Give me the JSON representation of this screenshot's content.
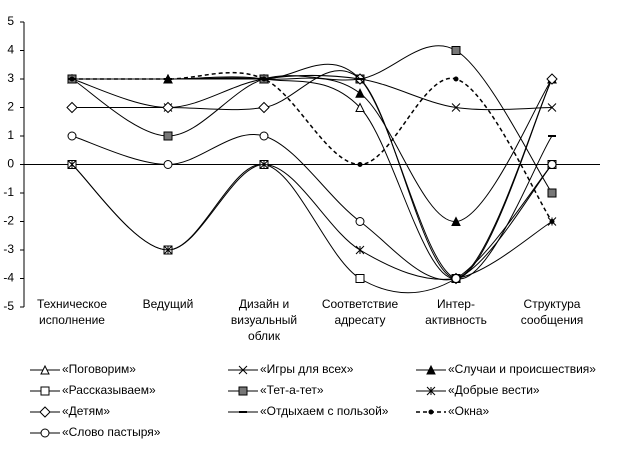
{
  "chart_data": {
    "type": "line",
    "categories": [
      "Техническое\nисполнение",
      "Ведущий",
      "Дизайн и\nвизуальный\nоблик",
      "Соответствие\nадресату",
      "Интер-\nактивность",
      "Структура\nсообщения"
    ],
    "ylim": [
      -5,
      5
    ],
    "yticks": [
      -5,
      -4,
      -3,
      -2,
      -1,
      0,
      1,
      2,
      3,
      4,
      5
    ],
    "series": [
      {
        "name": "«Поговорим»",
        "color": "#000000",
        "marker": "triangle-open",
        "dash": false,
        "values": [
          3,
          3,
          3,
          2,
          -4,
          3
        ]
      },
      {
        "name": "«Игры для всех»",
        "color": "#000000",
        "marker": "x",
        "dash": false,
        "values": [
          3,
          2,
          3,
          3,
          2,
          2
        ]
      },
      {
        "name": "«Случаи и происшествия»",
        "color": "#000000",
        "marker": "triangle-filled",
        "dash": false,
        "values": [
          3,
          3,
          3,
          2.5,
          -2,
          3
        ]
      },
      {
        "name": "«Рассказываем»",
        "color": "#000000",
        "marker": "square-open",
        "dash": false,
        "values": [
          0,
          -3,
          0,
          -4,
          -4,
          0
        ]
      },
      {
        "name": "«Тет-а-тет»",
        "color": "#000000",
        "marker": "square-filled",
        "dash": false,
        "values": [
          3,
          1,
          3,
          3,
          4,
          -1
        ]
      },
      {
        "name": "«Добрые вести»",
        "color": "#000000",
        "marker": "star",
        "dash": false,
        "values": [
          0,
          -3,
          0,
          -3,
          -4,
          -2
        ]
      },
      {
        "name": "«Детям»",
        "color": "#000000",
        "marker": "diamond-open",
        "dash": false,
        "values": [
          2,
          2,
          2,
          3,
          -4,
          3
        ]
      },
      {
        "name": "«Отдыхаем с пользой»",
        "color": "#000000",
        "marker": "dash",
        "dash": false,
        "values": [
          3,
          3,
          3,
          3,
          -4,
          1
        ]
      },
      {
        "name": "«Окна»",
        "color": "#000000",
        "marker": "dot",
        "dash": true,
        "values": [
          3,
          3,
          3,
          0,
          3,
          -2
        ]
      },
      {
        "name": "«Слово пастыря»",
        "color": "#000000",
        "marker": "circle-open",
        "dash": false,
        "values": [
          1,
          0,
          1,
          -2,
          -4,
          0
        ]
      }
    ]
  }
}
